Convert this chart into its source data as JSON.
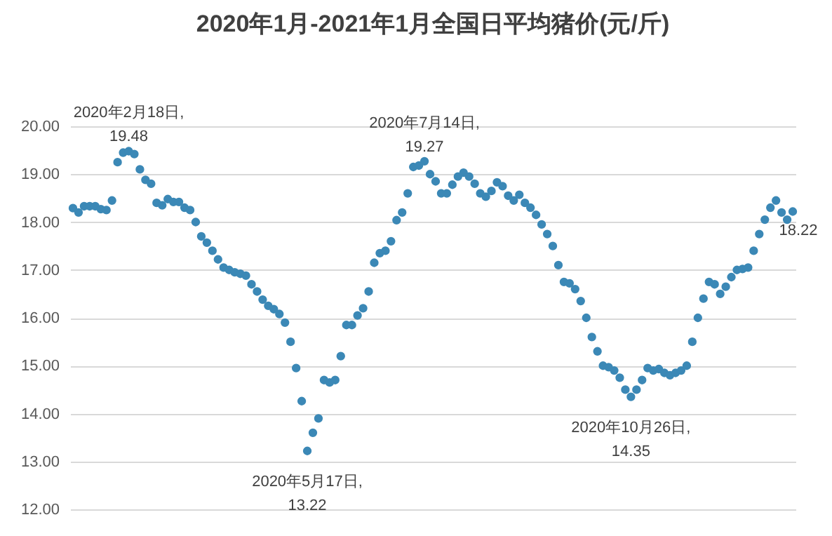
{
  "chart_data": {
    "type": "scatter",
    "title": "2020年1月-2021年1月全国日平均猪价(元/斤)",
    "categories": [
      null,
      null,
      null,
      null,
      null,
      null,
      null,
      null,
      null,
      null,
      null,
      null,
      null,
      null,
      null,
      null,
      null,
      null,
      null,
      null,
      null,
      null,
      null,
      null,
      null,
      null,
      null,
      null,
      null,
      null,
      null,
      null,
      null,
      null,
      null,
      null,
      null,
      null,
      null,
      null,
      null,
      null,
      null,
      null,
      null,
      null,
      null,
      null,
      null,
      null,
      null,
      null,
      null,
      null,
      null,
      null,
      null,
      null,
      null,
      null,
      null,
      null,
      null,
      null,
      null,
      null,
      null,
      null,
      null,
      null,
      null,
      null,
      null,
      null,
      null,
      null,
      null,
      null,
      null,
      null,
      null,
      null,
      null,
      null,
      null,
      null,
      null,
      null,
      null,
      null,
      null,
      null,
      null,
      null,
      null,
      null,
      null,
      null,
      null,
      null,
      null,
      null,
      null,
      null,
      null,
      null,
      null,
      null,
      null,
      null,
      null,
      null,
      null,
      null,
      null,
      null,
      null,
      null,
      null,
      null,
      null,
      null,
      null,
      null,
      null,
      null,
      null,
      null,
      null,
      null
    ],
    "series": [
      {
        "color": "#3b88b6",
        "values": [
          18.29,
          18.2,
          18.33,
          18.33,
          18.33,
          18.27,
          18.25,
          18.45,
          19.25,
          19.45,
          19.48,
          19.42,
          19.1,
          18.88,
          18.8,
          18.4,
          18.35,
          18.48,
          18.42,
          18.42,
          18.3,
          18.25,
          18.0,
          17.7,
          17.57,
          17.4,
          17.22,
          17.05,
          17.0,
          16.95,
          16.92,
          16.88,
          16.7,
          16.55,
          16.38,
          16.25,
          16.18,
          16.08,
          15.9,
          15.5,
          14.95,
          14.26,
          13.22,
          13.6,
          13.9,
          14.7,
          14.65,
          14.7,
          15.2,
          15.85,
          15.85,
          16.05,
          16.2,
          16.55,
          17.15,
          17.35,
          17.4,
          17.6,
          18.04,
          18.2,
          18.6,
          19.15,
          19.18,
          19.27,
          19.0,
          18.85,
          18.6,
          18.6,
          18.78,
          18.95,
          19.03,
          18.95,
          18.8,
          18.6,
          18.53,
          18.65,
          18.83,
          18.75,
          18.55,
          18.45,
          18.57,
          18.4,
          18.3,
          18.15,
          17.95,
          17.75,
          17.5,
          17.1,
          16.75,
          16.72,
          16.6,
          16.35,
          16.0,
          15.6,
          15.3,
          15.0,
          14.97,
          14.9,
          14.75,
          14.5,
          14.35,
          14.5,
          14.7,
          14.95,
          14.9,
          14.93,
          14.85,
          14.8,
          14.85,
          14.9,
          15.0,
          15.5,
          16.0,
          16.4,
          16.75,
          16.7,
          16.5,
          16.65,
          16.85,
          17.0,
          17.02,
          17.05,
          17.4,
          17.75,
          18.05,
          18.3,
          18.45,
          18.2,
          18.05,
          18.22
        ]
      }
    ],
    "ylim": [
      12,
      20
    ],
    "yticks": [
      {
        "value": 12,
        "label": "12.00"
      },
      {
        "value": 13,
        "label": "13.00"
      },
      {
        "value": 14,
        "label": "14.00"
      },
      {
        "value": 15,
        "label": "15.00"
      },
      {
        "value": 16,
        "label": "16.00"
      },
      {
        "value": 17,
        "label": "17.00"
      },
      {
        "value": 18,
        "label": "18.00"
      },
      {
        "value": 19,
        "label": "19.00"
      },
      {
        "value": 20,
        "label": "20.00"
      }
    ],
    "grid": "y",
    "tick_labels": "y",
    "marker": "circle",
    "annotations": [
      {
        "text": "2020年2月18日,\n19.48",
        "y": 19.48
      },
      {
        "text": "2020年5月17日,\n13.22",
        "y": 13.22
      },
      {
        "text": "2020年7月14日,\n19.27",
        "y": 19.27
      },
      {
        "text": "2020年10月26日,\n14.35",
        "y": 14.35
      },
      {
        "text": "18.22",
        "y": 18.22
      }
    ]
  }
}
